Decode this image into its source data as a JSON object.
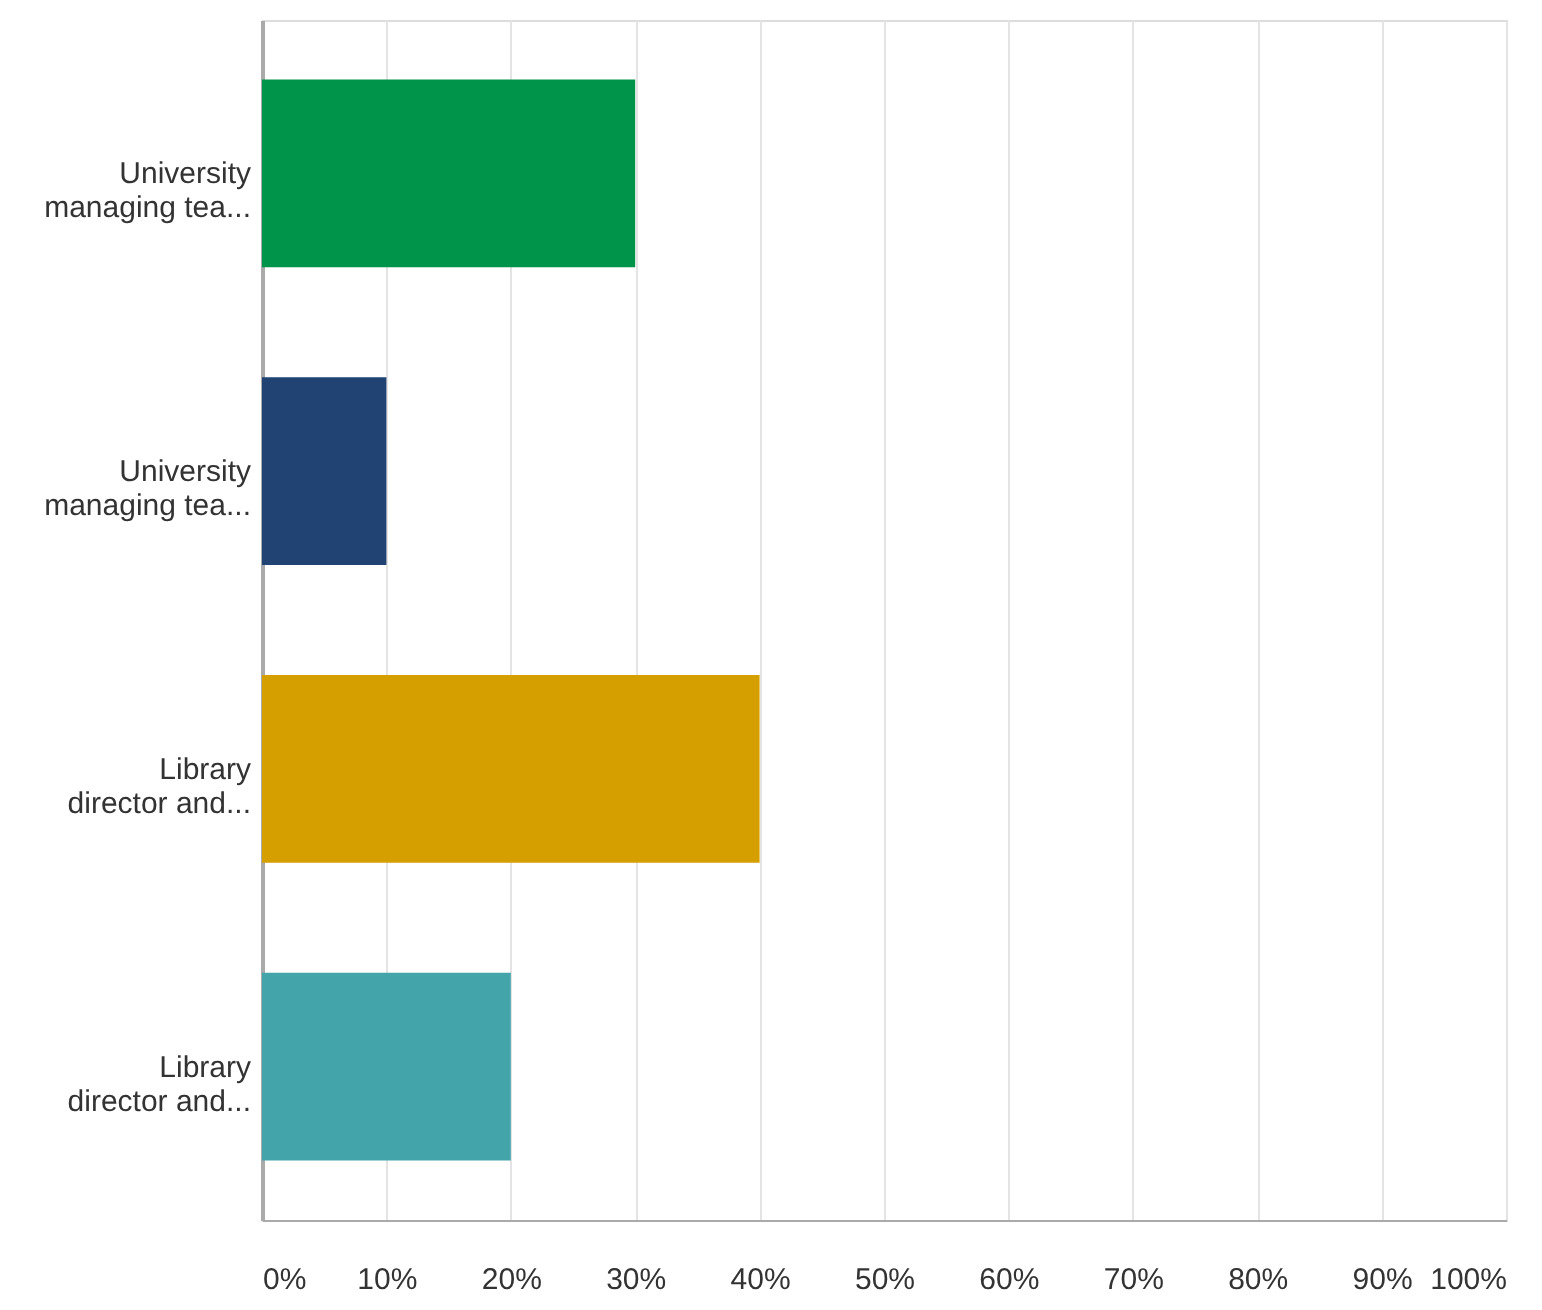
{
  "chart_data": {
    "type": "bar",
    "orientation": "horizontal",
    "categories": [
      "University managing tea...",
      "University managing tea...",
      "Library director and...",
      "Library director and..."
    ],
    "values": [
      30,
      10,
      40,
      20
    ],
    "colors": [
      "#00934a",
      "#204373",
      "#d59f00",
      "#43a4aa"
    ],
    "xlim": [
      0,
      100
    ],
    "xticks": [
      {
        "value": 0,
        "label": "0%"
      },
      {
        "value": 10,
        "label": "10%"
      },
      {
        "value": 20,
        "label": "20%"
      },
      {
        "value": 30,
        "label": "30%"
      },
      {
        "value": 40,
        "label": "40%"
      },
      {
        "value": 50,
        "label": "50%"
      },
      {
        "value": 60,
        "label": "60%"
      },
      {
        "value": 70,
        "label": "70%"
      },
      {
        "value": 80,
        "label": "80%"
      },
      {
        "value": 90,
        "label": "90%"
      },
      {
        "value": 100,
        "label": "100%"
      }
    ],
    "grid": "x"
  }
}
